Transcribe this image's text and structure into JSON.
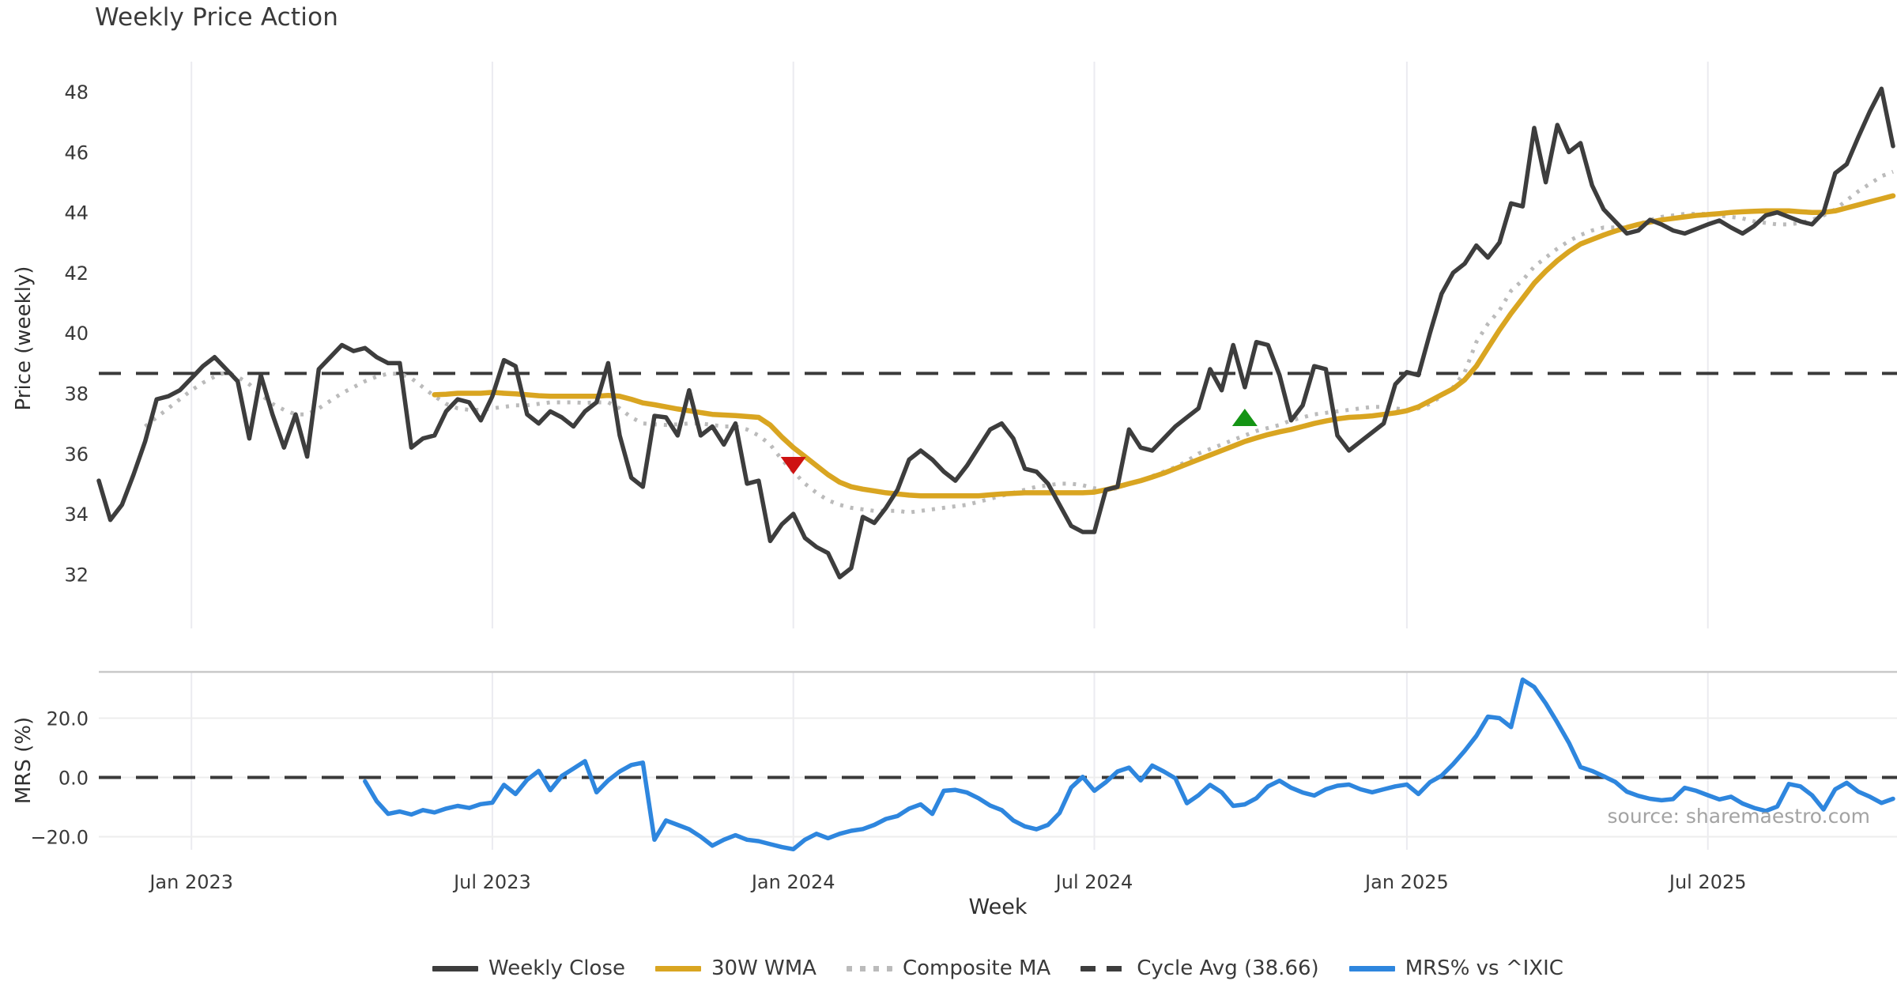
{
  "title": "Weekly Price Action",
  "xlabel": "Week",
  "source_note": "source: sharemaestro.com",
  "colors": {
    "close": "#3d3d3d",
    "wma": "#d9a521",
    "composite": "#bbbbbb",
    "cycle": "#3a3a3a",
    "mrs": "#2e86de",
    "sell": "#ce1212",
    "buy": "#149414",
    "grid": "#ebebf0",
    "panel_border": "#c9c9c9",
    "mrs_grid": "#ededed"
  },
  "legend": [
    {
      "label": "Weekly Close",
      "style": "solid",
      "color": "#3d3d3d"
    },
    {
      "label": "30W WMA",
      "style": "solid",
      "color": "#d9a521"
    },
    {
      "label": "Composite MA",
      "style": "dotted",
      "color": "#bbbbbb"
    },
    {
      "label": "Cycle Avg (38.66)",
      "style": "dashed",
      "color": "#3d3d3d"
    },
    {
      "label": "MRS% vs ^IXIC",
      "style": "solid",
      "color": "#2e86de"
    }
  ],
  "chart_data": {
    "type": "line",
    "x": {
      "unit": "week",
      "points": 156,
      "start": "Nov 2022",
      "end": "Oct 2025"
    },
    "xticks": [
      {
        "label": "Jan 2023",
        "week": 8
      },
      {
        "label": "Jul 2023",
        "week": 34
      },
      {
        "label": "Jan 2024",
        "week": 60
      },
      {
        "label": "Jul 2024",
        "week": 86
      },
      {
        "label": "Jan 2025",
        "week": 113
      },
      {
        "label": "Jul 2025",
        "week": 139
      }
    ],
    "price": {
      "ylabel": "Price (weekly)",
      "yticks": [
        32,
        34,
        36,
        38,
        40,
        42,
        44,
        46,
        48
      ],
      "ylim": [
        30.2,
        49.0
      ],
      "cycle_avg": 38.66,
      "grid": "vertical-only",
      "markers": [
        {
          "type": "sell",
          "week": 60,
          "value": 35.6,
          "color": "#ce1212"
        },
        {
          "type": "buy",
          "week": 99,
          "value": 37.2,
          "color": "#149414"
        }
      ],
      "series": [
        {
          "name": "Weekly Close",
          "style": "solid",
          "color": "#3d3d3d",
          "values": [
            35.1,
            33.8,
            34.3,
            35.3,
            36.4,
            37.8,
            37.9,
            38.1,
            38.5,
            38.9,
            39.2,
            38.8,
            38.4,
            36.5,
            38.6,
            37.3,
            36.2,
            37.3,
            35.9,
            38.8,
            39.2,
            39.6,
            39.4,
            39.5,
            39.2,
            39.0,
            39.0,
            36.2,
            36.5,
            36.6,
            37.4,
            37.8,
            37.7,
            37.1,
            37.9,
            39.1,
            38.9,
            37.3,
            37.0,
            37.4,
            37.2,
            36.9,
            37.4,
            37.7,
            39.0,
            36.6,
            35.2,
            34.9,
            37.25,
            37.2,
            36.6,
            38.1,
            36.6,
            36.9,
            36.3,
            37.0,
            35.0,
            35.1,
            33.1,
            33.65,
            34.0,
            33.2,
            32.9,
            32.7,
            31.9,
            32.2,
            33.9,
            33.7,
            34.2,
            34.8,
            35.8,
            36.1,
            35.8,
            35.4,
            35.1,
            35.6,
            36.2,
            36.8,
            37.0,
            36.5,
            35.5,
            35.4,
            35.0,
            34.3,
            33.6,
            33.4,
            33.4,
            34.8,
            34.9,
            36.8,
            36.2,
            36.1,
            36.5,
            36.9,
            37.2,
            37.5,
            38.8,
            38.1,
            39.6,
            38.2,
            39.7,
            39.6,
            38.6,
            37.1,
            37.6,
            38.9,
            38.8,
            36.6,
            36.1,
            36.4,
            36.7,
            37.0,
            38.3,
            38.7,
            38.6,
            40.0,
            41.3,
            42.0,
            42.3,
            42.9,
            42.5,
            43.0,
            44.3,
            44.2,
            46.8,
            45.0,
            46.9,
            46.0,
            46.3,
            44.9,
            44.1,
            43.7,
            43.3,
            43.4,
            43.75,
            43.6,
            43.4,
            43.3,
            43.45,
            43.6,
            43.73,
            43.5,
            43.3,
            43.55,
            43.9,
            44.0,
            43.85,
            43.7,
            43.6,
            44.0,
            45.3,
            45.6,
            46.5,
            47.35,
            48.1,
            46.2
          ]
        },
        {
          "name": "30W WMA",
          "style": "solid",
          "color": "#d9a521",
          "values": [
            null,
            null,
            null,
            null,
            null,
            null,
            null,
            null,
            null,
            null,
            null,
            null,
            null,
            null,
            null,
            null,
            null,
            null,
            null,
            null,
            null,
            null,
            null,
            null,
            null,
            null,
            null,
            null,
            null,
            37.95,
            37.97,
            38.0,
            38.0,
            38.0,
            38.03,
            38.0,
            37.98,
            37.95,
            37.92,
            37.9,
            37.9,
            37.9,
            37.9,
            37.9,
            37.93,
            37.9,
            37.8,
            37.68,
            37.62,
            37.55,
            37.48,
            37.42,
            37.36,
            37.3,
            37.28,
            37.26,
            37.23,
            37.2,
            36.95,
            36.55,
            36.2,
            35.9,
            35.6,
            35.3,
            35.05,
            34.9,
            34.82,
            34.76,
            34.7,
            34.66,
            34.62,
            34.6,
            34.6,
            34.6,
            34.6,
            34.6,
            34.6,
            34.63,
            34.66,
            34.68,
            34.7,
            34.7,
            34.7,
            34.7,
            34.7,
            34.7,
            34.72,
            34.8,
            34.9,
            35.0,
            35.1,
            35.22,
            35.35,
            35.5,
            35.65,
            35.8,
            35.95,
            36.1,
            36.25,
            36.4,
            36.52,
            36.63,
            36.72,
            36.8,
            36.9,
            37.0,
            37.08,
            37.15,
            37.2,
            37.22,
            37.25,
            37.3,
            37.35,
            37.42,
            37.55,
            37.75,
            37.95,
            38.15,
            38.45,
            38.9,
            39.5,
            40.1,
            40.65,
            41.15,
            41.65,
            42.05,
            42.4,
            42.7,
            42.95,
            43.1,
            43.25,
            43.38,
            43.5,
            43.6,
            43.68,
            43.75,
            43.8,
            43.85,
            43.9,
            43.93,
            43.96,
            44.0,
            44.02,
            44.04,
            44.05,
            44.05,
            44.05,
            44.02,
            44.0,
            44.0,
            44.05,
            44.15,
            44.25,
            44.35,
            44.45,
            44.55
          ]
        },
        {
          "name": "Composite MA",
          "style": "dotted",
          "color": "#bbbbbb",
          "values": [
            null,
            null,
            null,
            null,
            36.9,
            37.2,
            37.5,
            37.8,
            38.1,
            38.35,
            38.55,
            38.7,
            38.55,
            38.3,
            37.95,
            37.65,
            37.45,
            37.3,
            37.3,
            37.5,
            37.75,
            38.0,
            38.2,
            38.4,
            38.55,
            38.65,
            38.65,
            38.5,
            38.2,
            37.9,
            37.65,
            37.5,
            37.45,
            37.45,
            37.5,
            37.55,
            37.6,
            37.6,
            37.65,
            37.7,
            37.7,
            37.7,
            37.68,
            37.7,
            37.7,
            37.5,
            37.2,
            37.0,
            36.97,
            36.95,
            36.97,
            37.0,
            37.0,
            36.95,
            36.9,
            36.9,
            36.8,
            36.6,
            36.3,
            35.8,
            35.4,
            35.0,
            34.7,
            34.45,
            34.3,
            34.2,
            34.15,
            34.1,
            34.1,
            34.1,
            34.05,
            34.1,
            34.15,
            34.2,
            34.25,
            34.3,
            34.4,
            34.5,
            34.6,
            34.7,
            34.8,
            34.9,
            34.95,
            35.0,
            35.0,
            34.95,
            34.85,
            34.8,
            34.85,
            35.0,
            35.1,
            35.25,
            35.4,
            35.55,
            35.75,
            36.0,
            36.15,
            36.3,
            36.45,
            36.6,
            36.75,
            36.85,
            36.95,
            37.1,
            37.2,
            37.3,
            37.35,
            37.4,
            37.45,
            37.5,
            37.55,
            37.55,
            37.5,
            37.45,
            37.5,
            37.65,
            37.9,
            38.2,
            38.7,
            39.7,
            40.3,
            40.75,
            41.4,
            41.75,
            42.2,
            42.5,
            42.8,
            43.05,
            43.25,
            43.4,
            43.5,
            43.5,
            43.5,
            43.6,
            43.75,
            43.85,
            43.9,
            43.95,
            43.95,
            43.95,
            43.9,
            43.85,
            43.8,
            43.7,
            43.65,
            43.6,
            43.6,
            43.65,
            43.75,
            43.9,
            44.1,
            44.4,
            44.7,
            44.95,
            45.2,
            45.35
          ]
        }
      ]
    },
    "mrs": {
      "ylabel": "MRS (%)",
      "yticks": [
        20,
        0,
        -20
      ],
      "ytick_labels": [
        "20.0",
        "0.0",
        "−20.0"
      ],
      "ylim": [
        -24.4,
        35.6
      ],
      "zero_line": 0,
      "series": [
        {
          "name": "MRS% vs ^IXIC",
          "style": "solid",
          "color": "#2e86de",
          "values": [
            null,
            null,
            null,
            null,
            null,
            null,
            null,
            null,
            null,
            null,
            null,
            null,
            null,
            null,
            null,
            null,
            null,
            null,
            null,
            null,
            null,
            null,
            null,
            -1.3,
            -8.0,
            -12.3,
            -11.5,
            -12.5,
            -11.0,
            -11.8,
            -10.5,
            -9.6,
            -10.3,
            -9.0,
            -8.5,
            -2.5,
            -5.6,
            -0.8,
            2.2,
            -4.3,
            0.5,
            3.0,
            5.5,
            -5.0,
            -1.0,
            2.0,
            4.2,
            5.0,
            -21.0,
            -14.5,
            -16.0,
            -17.5,
            -20.0,
            -23.0,
            -21.0,
            -19.5,
            -21.0,
            -21.5,
            -22.5,
            -23.5,
            -24.2,
            -21.0,
            -19.0,
            -20.5,
            -19.0,
            -18.0,
            -17.4,
            -16.0,
            -14.0,
            -13.0,
            -10.5,
            -9.1,
            -12.3,
            -4.5,
            -4.2,
            -5.1,
            -7.0,
            -9.5,
            -11.0,
            -14.5,
            -16.5,
            -17.5,
            -16.0,
            -12.0,
            -3.4,
            0.2,
            -4.5,
            -1.6,
            2.0,
            3.3,
            -1.0,
            4.0,
            2.0,
            -0.3,
            -8.7,
            -6.0,
            -2.5,
            -5.0,
            -9.6,
            -9.1,
            -7.0,
            -3.0,
            -1.1,
            -3.5,
            -5.1,
            -6.1,
            -4.0,
            -2.8,
            -2.4,
            -4.0,
            -5.0,
            -4.0,
            -3.0,
            -2.4,
            -5.6,
            -1.6,
            0.6,
            4.5,
            9.0,
            14.0,
            20.5,
            20.0,
            17.0,
            33.0,
            30.5,
            25.0,
            18.5,
            11.7,
            3.5,
            2.2,
            0.4,
            -1.5,
            -4.8,
            -6.2,
            -7.2,
            -7.7,
            -7.3,
            -3.5,
            -4.5,
            -6.0,
            -7.4,
            -6.5,
            -8.8,
            -10.3,
            -11.3,
            -9.8,
            -2.2,
            -3.0,
            -6.0,
            -10.8,
            -4.0,
            -1.8,
            -4.8,
            -6.5,
            -8.6,
            -7.2
          ]
        }
      ]
    }
  }
}
